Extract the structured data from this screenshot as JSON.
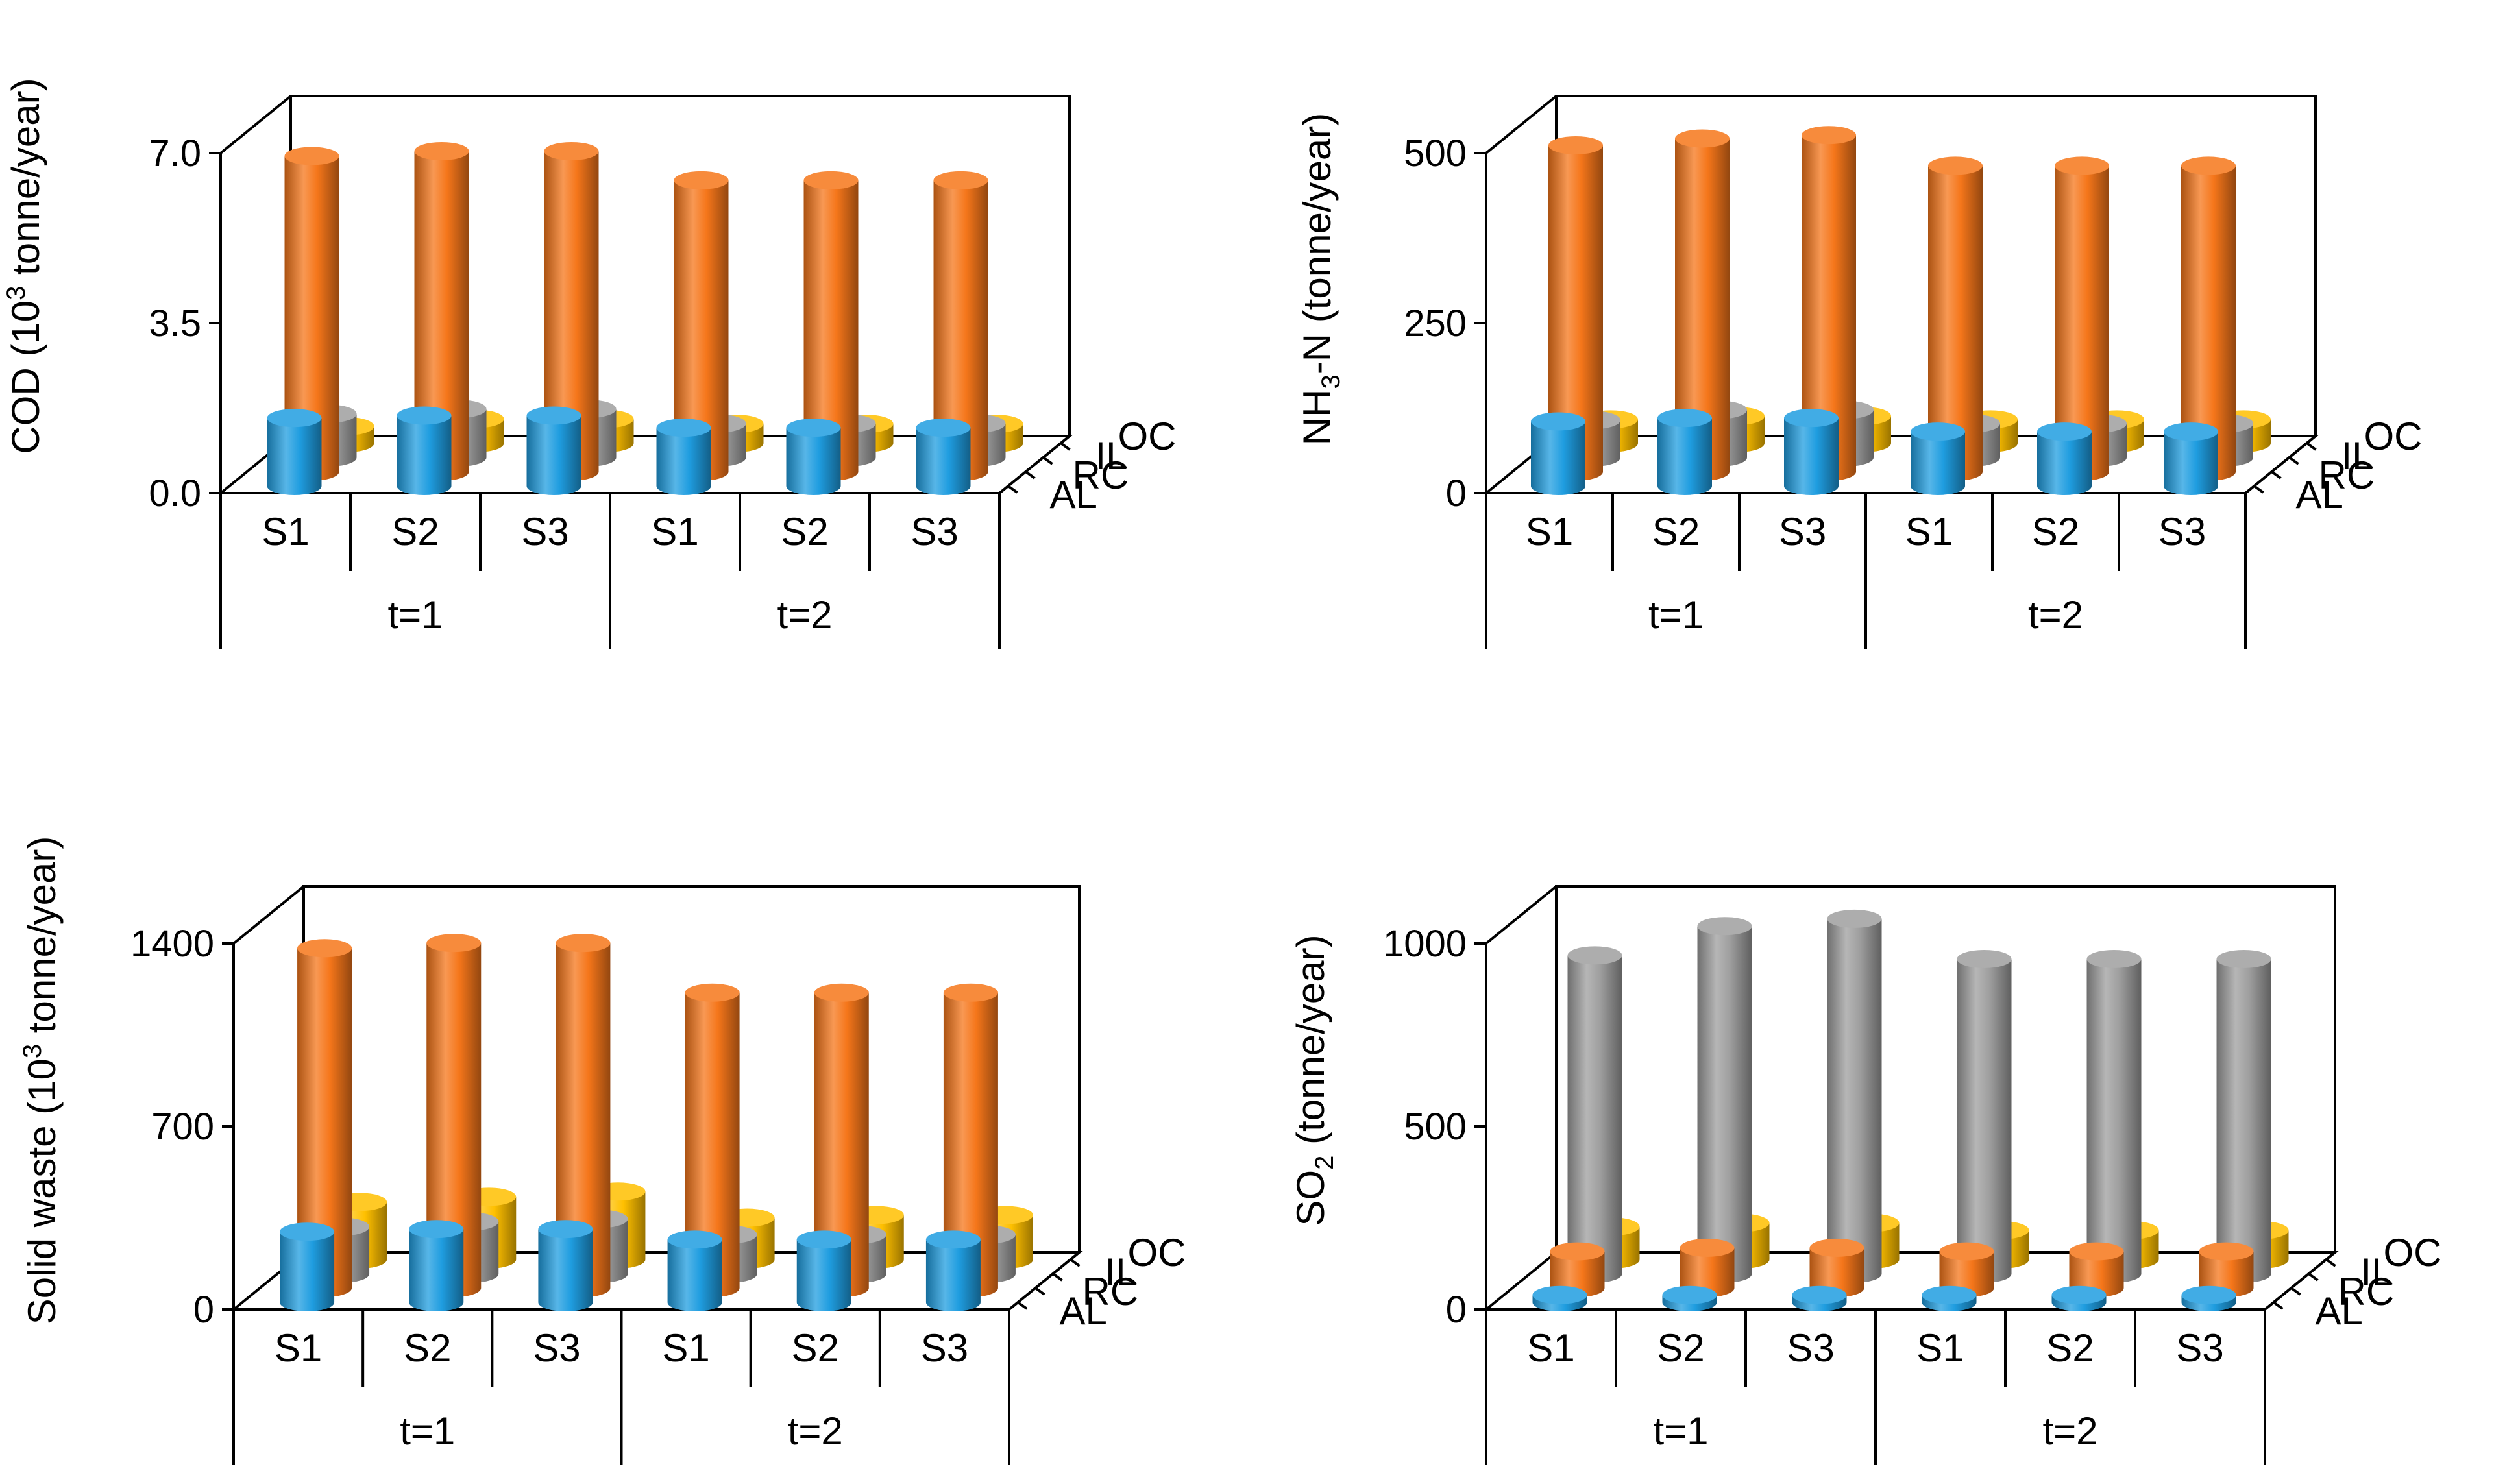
{
  "series_names": [
    "AL",
    "RC",
    "IL",
    "OC"
  ],
  "colors": {
    "AL": "#1f9de0",
    "RC": "#f5761a",
    "IL": "#9e9e9e",
    "OC": "#ffc000"
  },
  "chart_data": [
    {
      "type": "bar",
      "title": "",
      "ylabel": {
        "pre": "COD (10",
        "sup": "3",
        "post": " tonne/year)"
      },
      "ylim": [
        0,
        7
      ],
      "yticks": [
        "0.0",
        "3.5",
        "7.0"
      ],
      "categories": [
        "S1",
        "S2",
        "S3",
        "S1",
        "S2",
        "S3"
      ],
      "groups": [
        "t=1",
        "t=2"
      ],
      "series": [
        {
          "name": "AL",
          "values": [
            1.4,
            1.45,
            1.45,
            1.2,
            1.2,
            1.2
          ]
        },
        {
          "name": "RC",
          "values": [
            6.5,
            6.6,
            6.6,
            6.0,
            6.0,
            6.0
          ]
        },
        {
          "name": "IL",
          "values": [
            0.9,
            1.0,
            1.0,
            0.7,
            0.7,
            0.7
          ]
        },
        {
          "name": "OC",
          "values": [
            0.35,
            0.5,
            0.5,
            0.4,
            0.4,
            0.4
          ]
        }
      ]
    },
    {
      "type": "bar",
      "title": "",
      "ylabel": {
        "pre": "NH",
        "sub": "3",
        "post": "-N (tonne/year)"
      },
      "ylim": [
        0,
        500
      ],
      "yticks": [
        "0",
        "250",
        "500"
      ],
      "categories": [
        "S1",
        "S2",
        "S3",
        "S1",
        "S2",
        "S3"
      ],
      "groups": [
        "t=1",
        "t=2"
      ],
      "series": [
        {
          "name": "AL",
          "values": [
            95,
            100,
            100,
            80,
            80,
            80
          ]
        },
        {
          "name": "RC",
          "values": [
            480,
            490,
            495,
            450,
            450,
            450
          ]
        },
        {
          "name": "IL",
          "values": [
            55,
            70,
            70,
            50,
            50,
            50
          ]
        },
        {
          "name": "OC",
          "values": [
            35,
            40,
            40,
            35,
            35,
            35
          ]
        }
      ]
    },
    {
      "type": "bar",
      "title": "",
      "ylabel": {
        "pre": "Solid waste (10",
        "sup": "3",
        "post": " tonne/year)"
      },
      "ylim": [
        0,
        1400
      ],
      "yticks": [
        "0",
        "700",
        "1400"
      ],
      "categories": [
        "S1",
        "S2",
        "S3",
        "S1",
        "S2",
        "S3"
      ],
      "groups": [
        "t=1",
        "t=2"
      ],
      "series": [
        {
          "name": "AL",
          "values": [
            270,
            280,
            280,
            240,
            240,
            240
          ]
        },
        {
          "name": "RC",
          "values": [
            1300,
            1320,
            1320,
            1130,
            1130,
            1130
          ]
        },
        {
          "name": "IL",
          "values": [
            180,
            200,
            210,
            150,
            150,
            150
          ]
        },
        {
          "name": "OC",
          "values": [
            220,
            240,
            260,
            160,
            170,
            170
          ]
        }
      ]
    },
    {
      "type": "bar",
      "title": "",
      "ylabel": {
        "pre": "SO",
        "sub": "2",
        "post": " (tonne/year)"
      },
      "ylim": [
        0,
        1000
      ],
      "yticks": [
        "0",
        "500",
        "1000"
      ],
      "categories": [
        "S1",
        "S2",
        "S3",
        "S1",
        "S2",
        "S3"
      ],
      "groups": [
        "t=1",
        "t=2"
      ],
      "series": [
        {
          "name": "AL",
          "values": [
            20,
            20,
            20,
            20,
            20,
            20
          ]
        },
        {
          "name": "RC",
          "values": [
            100,
            110,
            110,
            100,
            100,
            100
          ]
        },
        {
          "name": "IL",
          "values": [
            870,
            950,
            970,
            860,
            860,
            860
          ]
        },
        {
          "name": "OC",
          "values": [
            90,
            100,
            100,
            80,
            80,
            80
          ]
        }
      ]
    }
  ]
}
